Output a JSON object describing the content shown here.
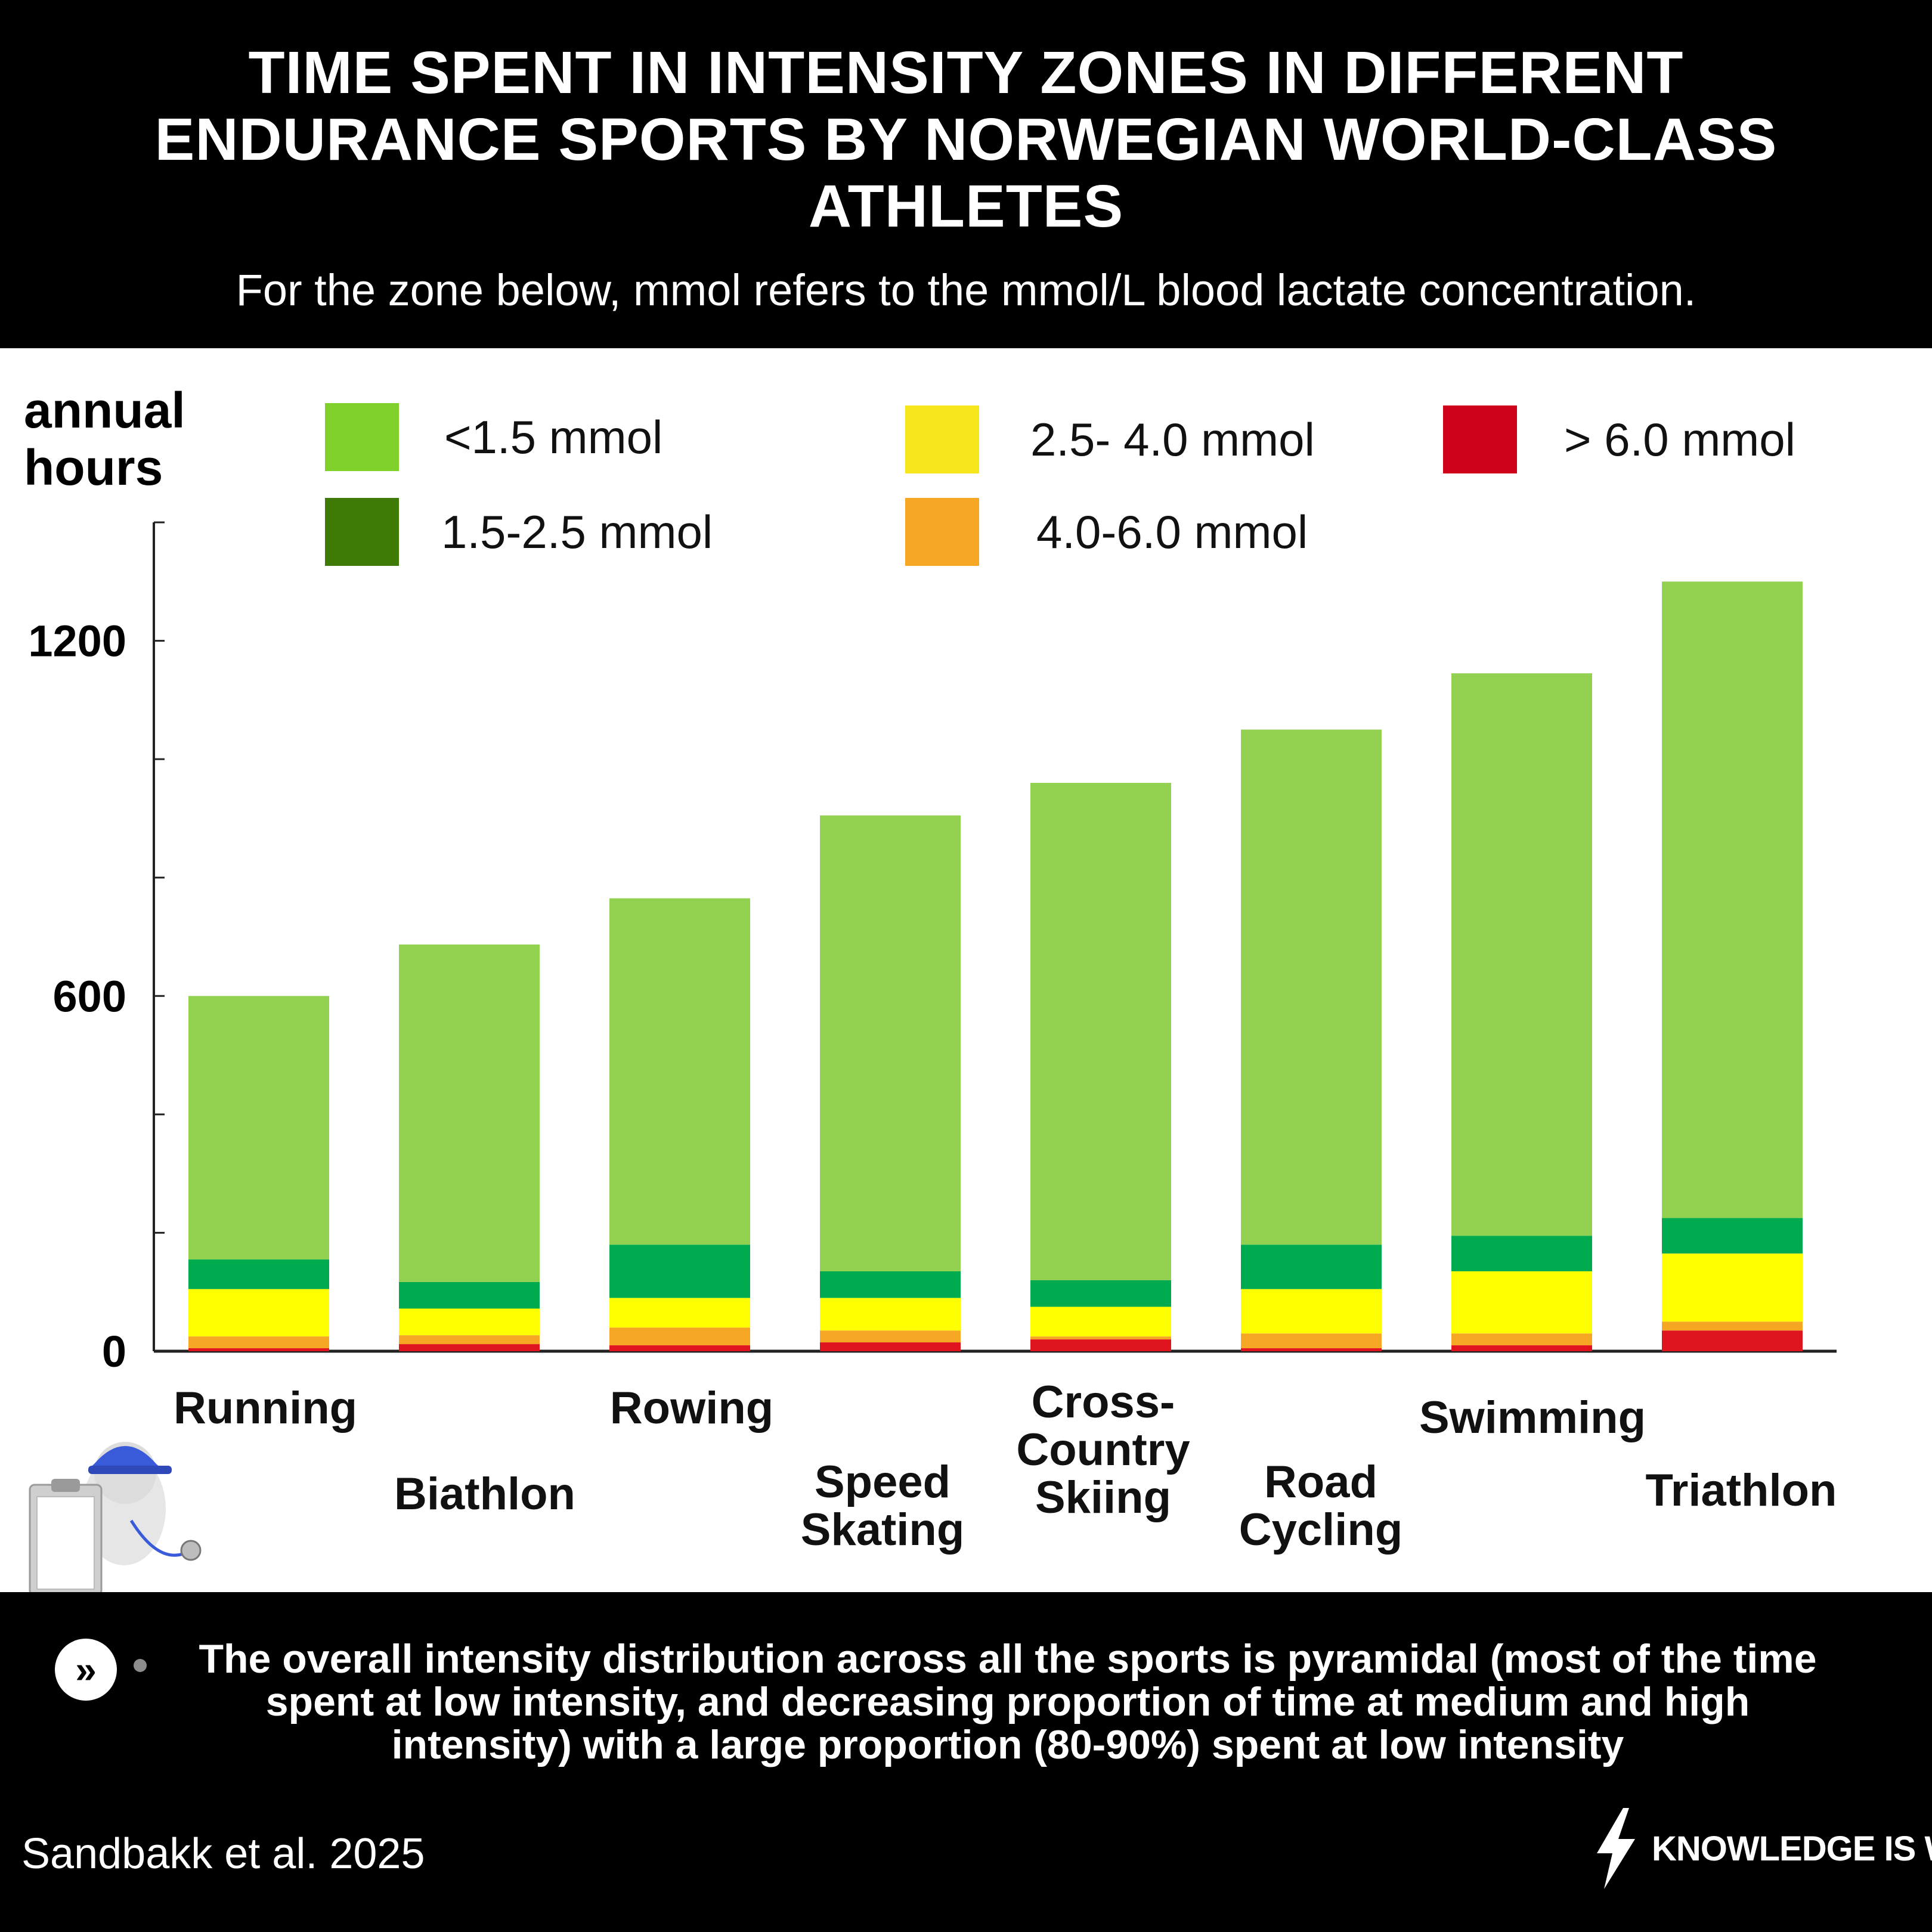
{
  "header": {
    "title": "TIME SPENT IN INTENSITY ZONES IN DIFFERENT ENDURANCE SPORTS BY NORWEGIAN WORLD-CLASS ATHLETES",
    "subtitle": "For the zone below, mmol refers to the mmol/L blood lactate concentration."
  },
  "chart_data": {
    "type": "bar",
    "stacked": true,
    "title": "TIME SPENT IN INTENSITY ZONES IN DIFFERENT ENDURANCE SPORTS BY NORWEGIAN WORLD-CLASS ATHLETES",
    "xlabel": "",
    "ylabel": "annual hours",
    "ylim": [
      0,
      1400
    ],
    "yticks": [
      0,
      600,
      1200
    ],
    "categories": [
      "Running",
      "Biathlon",
      "Rowing",
      "Speed Skating",
      "Cross-Country Skiing",
      "Road Cycling",
      "Swimming",
      "Triathlon"
    ],
    "series": [
      {
        "name": "> 6.0 mmol",
        "color": "#e0141e",
        "values": [
          5,
          12,
          10,
          15,
          20,
          5,
          10,
          35
        ]
      },
      {
        "name": "4.0-6.0 mmol",
        "color": "#f5a623",
        "values": [
          20,
          15,
          30,
          20,
          5,
          25,
          20,
          15
        ]
      },
      {
        "name": "2.5- 4.0 mmol",
        "color": "#ffff00",
        "values": [
          80,
          45,
          50,
          55,
          50,
          75,
          105,
          115
        ]
      },
      {
        "name": "1.5-2.5 mmol",
        "color": "#00ab4f",
        "values": [
          50,
          45,
          90,
          45,
          45,
          75,
          60,
          60
        ]
      },
      {
        "name": "<1.5 mmol",
        "color": "#92d050",
        "values": [
          445,
          570,
          585,
          770,
          840,
          870,
          950,
          1075
        ]
      }
    ],
    "legend": [
      {
        "label": "<1.5 mmol",
        "color": "#7fd02a"
      },
      {
        "label": "1.5-2.5 mmol",
        "color": "#3f7a06"
      },
      {
        "label": "2.5- 4.0 mmol",
        "color": "#f7e51e"
      },
      {
        "label": "4.0-6.0 mmol",
        "color": "#f5a623"
      },
      {
        "label": "> 6.0 mmol",
        "color": "#d0021b"
      }
    ],
    "legend_position": "top",
    "grid": false
  },
  "chart": {
    "ylabel_line1": "annual",
    "ylabel_line2": "hours",
    "labels": [
      {
        "line1": "Running",
        "line2": ""
      },
      {
        "line1": "Biathlon",
        "line2": ""
      },
      {
        "line1": "Rowing",
        "line2": ""
      },
      {
        "line1": "Speed",
        "line2": "Skating"
      },
      {
        "line1": "Cross-",
        "line2": "Country",
        "line3": "Skiing"
      },
      {
        "line1": "Road",
        "line2": "Cycling"
      },
      {
        "line1": "Swimming",
        "line2": ""
      },
      {
        "line1": "Triathlon",
        "line2": ""
      }
    ]
  },
  "footer": {
    "next_icon": "»",
    "note": "The overall intensity distribution across all the sports is pyramidal (most of the time spent at low intensity, and decreasing proportion of time at medium and high intensity) with a large proportion (80-90%) spent at low intensity",
    "source": "Sandbakk et al. 2025",
    "brand": "KNOWLEDGE IS WATT"
  },
  "icons": {
    "brand_logo": "lightning-bolt-icon",
    "illustration": "coach-with-clipboard-and-whistle-icon",
    "next": "double-chevron-right-icon"
  }
}
